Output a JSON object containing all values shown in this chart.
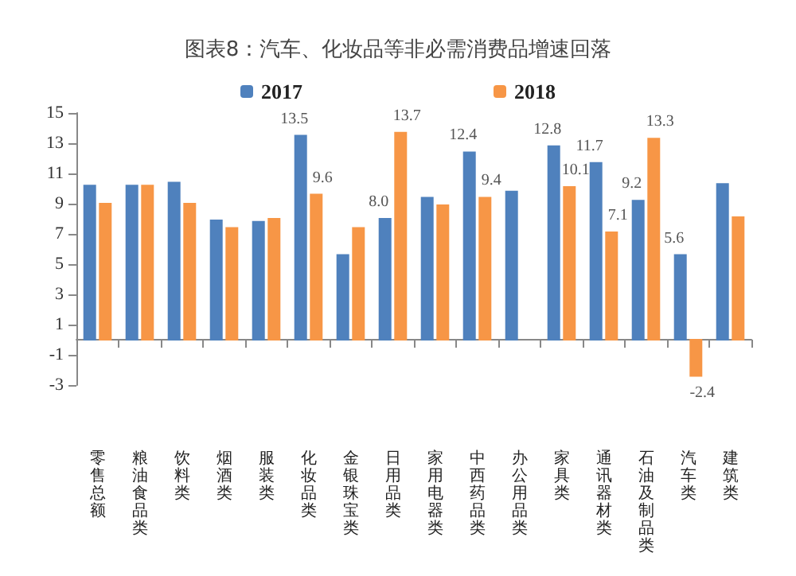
{
  "chart_data": {
    "type": "bar",
    "title": "图表8：汽车、化妆品等非必需消费品增速回落",
    "categories": [
      "零售总额",
      "粮油食品类",
      "饮料类",
      "烟酒类",
      "服装类",
      "化妆品类",
      "金银珠宝类",
      "日用品类",
      "家用电器类",
      "中西药品类",
      "办公用品类",
      "家具类",
      "通讯器材类",
      "石油及制品类",
      "汽车类",
      "建筑类"
    ],
    "series": [
      {
        "name": "2017",
        "color": "#4f81bd",
        "values": [
          10.2,
          10.2,
          10.4,
          7.9,
          7.8,
          13.5,
          5.6,
          8.0,
          9.4,
          12.4,
          9.8,
          12.8,
          11.7,
          9.2,
          5.6,
          10.3
        ],
        "value_labels": [
          null,
          null,
          null,
          null,
          null,
          "13.5",
          null,
          "8.0",
          null,
          "12.4",
          null,
          "12.8",
          "11.7",
          "9.2",
          "5.6",
          null
        ]
      },
      {
        "name": "2018",
        "color": "#f79646",
        "values": [
          9.0,
          10.2,
          9.0,
          7.4,
          8.0,
          9.6,
          7.4,
          13.7,
          8.9,
          9.4,
          null,
          10.1,
          7.1,
          13.3,
          -2.4,
          8.1
        ],
        "value_labels": [
          null,
          null,
          null,
          null,
          null,
          "9.6",
          null,
          "13.7",
          null,
          "9.4",
          null,
          "10.1",
          "7.1",
          "13.3",
          "-2.4",
          null
        ]
      }
    ],
    "ylim": [
      -3,
      15
    ],
    "yticks": [
      -3,
      -1,
      1,
      3,
      5,
      7,
      9,
      11,
      13,
      15
    ],
    "grid": false,
    "legend": "top"
  }
}
